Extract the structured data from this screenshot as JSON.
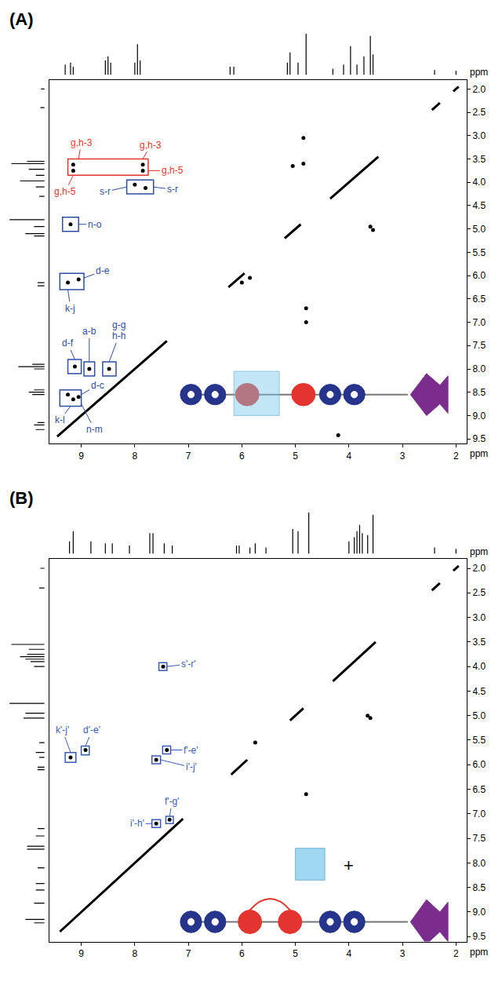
{
  "chart_data": [
    {
      "type": "scatter",
      "title": "(A)",
      "x_label": "ppm",
      "y_label": "ppm",
      "xlim": [
        9.6,
        1.8
      ],
      "ylim": [
        9.6,
        1.8
      ],
      "xticks": [
        9,
        8,
        7,
        6,
        5,
        4,
        3,
        2
      ],
      "yticks": [
        {
          "value": 2,
          "label": "2.0"
        },
        2.5,
        {
          "value": 3,
          "label": "3.0"
        },
        3.5,
        {
          "value": 4,
          "label": "4.0"
        },
        4.5,
        {
          "value": 5,
          "label": "5.0"
        },
        5.5,
        {
          "value": 6,
          "label": "6.0"
        },
        6.5,
        {
          "value": 7,
          "label": "7.0"
        },
        7.5,
        {
          "value": 8,
          "label": "8.0"
        },
        8.5,
        {
          "value": 9,
          "label": "9.0"
        },
        9.5
      ],
      "projection": {
        "color": "#000000",
        "x": [
          9.3,
          9.2,
          9.15,
          8.55,
          8.5,
          8.45,
          8.0,
          7.95,
          7.9,
          6.22,
          6.15,
          5.15,
          5.1,
          4.95,
          4.8,
          4.3,
          4.1,
          3.97,
          3.85,
          3.72,
          3.6,
          3.55,
          2.4,
          2.0
        ],
        "values": [
          0.25,
          0.3,
          0.2,
          0.35,
          0.45,
          0.3,
          0.3,
          0.75,
          0.35,
          0.2,
          0.2,
          0.3,
          0.55,
          0.3,
          1.0,
          0.15,
          0.25,
          0.7,
          0.25,
          0.45,
          0.95,
          0.5,
          0.12,
          0.1
        ]
      },
      "series": [
        {
          "type": "line",
          "line_style": "solid",
          "color": "#000000",
          "x": [
            9.45,
            7.4,
            null,
            6.25,
            5.95,
            null,
            5.2,
            4.9,
            null,
            4.35,
            3.45,
            null,
            2.45,
            2.3,
            null,
            2.05,
            1.95
          ],
          "y": [
            9.45,
            7.4,
            null,
            6.25,
            5.95,
            null,
            5.2,
            4.9,
            null,
            4.35,
            3.45,
            null,
            2.45,
            2.3,
            null,
            2.05,
            1.95
          ]
        },
        {
          "type": "scatter",
          "marker": "dot",
          "color": "#000000",
          "x": [
            9.15,
            7.85,
            9.15,
            7.85,
            8.0,
            7.8,
            9.2,
            9.25,
            9.05,
            9.12,
            8.85,
            8.48,
            9.25,
            9.15,
            9.05,
            4.85,
            4.85,
            5.05,
            3.6,
            3.55,
            4.8,
            4.8,
            4.2,
            6.0,
            5.85
          ],
          "y": [
            3.62,
            3.62,
            3.75,
            3.75,
            4.05,
            4.12,
            4.9,
            6.15,
            6.08,
            7.95,
            8.0,
            8.0,
            8.55,
            8.65,
            8.6,
            3.6,
            3.05,
            3.65,
            4.95,
            5.02,
            6.7,
            7.0,
            9.42,
            6.15,
            6.05
          ]
        }
      ],
      "boxes": [
        {
          "x": [
            9.25,
            7.75
          ],
          "y": [
            3.5,
            3.85
          ],
          "color": "#e3342f"
        },
        {
          "x": [
            8.15,
            7.65
          ],
          "y": [
            3.95,
            4.25
          ],
          "color": "#2f4da0"
        },
        {
          "x": [
            9.35,
            9.05
          ],
          "y": [
            4.75,
            5.05
          ],
          "color": "#2f4da0"
        },
        {
          "x": [
            9.4,
            8.95
          ],
          "y": [
            5.95,
            6.3
          ],
          "color": "#2f4da0"
        },
        {
          "x": [
            9.25,
            9.0
          ],
          "y": [
            7.8,
            8.1
          ],
          "color": "#2f4da0"
        },
        {
          "x": [
            8.95,
            8.75
          ],
          "y": [
            7.85,
            8.15
          ],
          "color": "#2f4da0"
        },
        {
          "x": [
            8.6,
            8.35
          ],
          "y": [
            7.85,
            8.15
          ],
          "color": "#2f4da0"
        },
        {
          "x": [
            9.4,
            9.0
          ],
          "y": [
            8.45,
            8.8
          ],
          "color": "#2f4da0"
        }
      ],
      "annotations": [
        {
          "text": "g,h-3",
          "x": 9.0,
          "y": 3.15,
          "point": [
            9.05,
            3.5
          ],
          "color": "#e3342f"
        },
        {
          "text": "g,h-3",
          "x": 7.7,
          "y": 3.2,
          "point": [
            7.85,
            3.5
          ],
          "color": "#e3342f"
        },
        {
          "text": "g,h-5",
          "x": 9.3,
          "y": 4.2,
          "point": [
            9.15,
            3.85
          ],
          "color": "#e3342f"
        },
        {
          "text": "g,h-5",
          "x": 7.3,
          "y": 3.75,
          "point": [
            7.75,
            3.75
          ],
          "color": "#e3342f"
        },
        {
          "text": "s-r",
          "x": 8.55,
          "y": 4.2,
          "point": [
            8.15,
            4.1
          ],
          "color": "#2f4da0"
        },
        {
          "text": "s-r",
          "x": 7.3,
          "y": 4.15,
          "point": [
            7.65,
            4.1
          ],
          "color": "#2f4da0"
        },
        {
          "text": "n-o",
          "x": 8.75,
          "y": 4.9,
          "point": [
            9.05,
            4.9
          ],
          "color": "#2f4da0"
        },
        {
          "text": "d-e",
          "x": 8.6,
          "y": 5.9,
          "point": [
            8.95,
            6.05
          ],
          "color": "#2f4da0"
        },
        {
          "text": "k-j",
          "x": 9.2,
          "y": 6.7,
          "point": [
            9.25,
            6.3
          ],
          "color": "#2f4da0"
        },
        {
          "text": "d-f",
          "x": 9.25,
          "y": 7.45,
          "point": [
            9.12,
            7.8
          ],
          "color": "#2f4da0"
        },
        {
          "text": "a-b",
          "x": 8.85,
          "y": 7.2,
          "point": [
            8.85,
            7.85
          ],
          "color": "#2f4da0"
        },
        {
          "text": "g-g",
          "x": 8.3,
          "y": 7.05,
          "color": "#2f4da0"
        },
        {
          "text": "h-h",
          "x": 8.3,
          "y": 7.3,
          "point": [
            8.48,
            7.85
          ],
          "color": "#2f4da0"
        },
        {
          "text": "d-c",
          "x": 8.7,
          "y": 8.35,
          "point": [
            9.0,
            8.55
          ],
          "color": "#2f4da0"
        },
        {
          "text": "k-l",
          "x": 9.4,
          "y": 9.1,
          "point": [
            9.2,
            8.8
          ],
          "color": "#2f4da0"
        },
        {
          "text": "n-m",
          "x": 8.75,
          "y": 9.3,
          "point": [
            9.0,
            8.75
          ],
          "color": "#2f4da0"
        }
      ]
    },
    {
      "type": "scatter",
      "title": "(B)",
      "x_label": "ppm",
      "y_label": "ppm",
      "xlim": [
        9.6,
        1.8
      ],
      "ylim": [
        9.6,
        1.8
      ],
      "xticks": [
        9,
        8,
        7,
        6,
        5,
        4,
        3,
        2
      ],
      "yticks": [
        {
          "value": 2,
          "label": "2.0"
        },
        2.5,
        {
          "value": 3,
          "label": "3.0"
        },
        3.5,
        {
          "value": 4,
          "label": "4.0"
        },
        4.5,
        {
          "value": 5,
          "label": "5.0"
        },
        5.5,
        {
          "value": 6,
          "label": "6.0"
        },
        6.5,
        {
          "value": 7,
          "label": "7.0"
        },
        7.5,
        {
          "value": 8,
          "label": "8.0"
        },
        8.5,
        {
          "value": 9,
          "label": "9.0"
        },
        9.5
      ],
      "projection": {
        "color": "#000000",
        "x": [
          9.22,
          9.15,
          8.82,
          8.55,
          8.42,
          8.1,
          7.72,
          7.66,
          7.45,
          7.3,
          6.1,
          6.05,
          5.85,
          5.75,
          5.55,
          5.05,
          4.95,
          4.75,
          4.0,
          3.9,
          3.85,
          3.8,
          3.75,
          3.65,
          3.55,
          2.4,
          2.0
        ],
        "values": [
          0.3,
          0.55,
          0.3,
          0.25,
          0.25,
          0.2,
          0.5,
          0.5,
          0.25,
          0.2,
          0.2,
          0.2,
          0.15,
          0.25,
          0.15,
          0.6,
          0.55,
          1.0,
          0.3,
          0.4,
          0.55,
          0.7,
          0.5,
          0.45,
          0.95,
          0.15,
          0.12
        ]
      },
      "series": [
        {
          "type": "line",
          "line_style": "solid",
          "color": "#000000",
          "x": [
            9.4,
            7.1,
            null,
            6.2,
            5.9,
            null,
            5.1,
            4.85,
            null,
            4.3,
            3.5,
            null,
            2.45,
            2.3,
            null,
            2.05,
            1.95
          ],
          "y": [
            9.4,
            7.1,
            null,
            6.2,
            5.9,
            null,
            5.1,
            4.85,
            null,
            4.3,
            3.5,
            null,
            2.45,
            2.3,
            null,
            2.05,
            1.95
          ]
        },
        {
          "type": "scatter",
          "marker": "dot",
          "color": "#000000",
          "x": [
            7.47,
            8.92,
            9.2,
            7.4,
            7.6,
            7.6,
            7.35,
            3.65,
            3.6,
            4.8,
            5.75
          ],
          "y": [
            4.0,
            5.7,
            5.85,
            5.7,
            5.9,
            7.2,
            7.12,
            5.0,
            5.05,
            6.6,
            5.55
          ]
        }
      ],
      "boxes": [
        {
          "x": [
            7.55,
            7.4
          ],
          "y": [
            3.92,
            4.08
          ],
          "color": "#3b5bb5"
        },
        {
          "x": [
            9.0,
            8.85
          ],
          "y": [
            5.62,
            5.8
          ],
          "color": "#3b5bb5"
        },
        {
          "x": [
            9.3,
            9.1
          ],
          "y": [
            5.75,
            5.95
          ],
          "color": "#3b5bb5"
        },
        {
          "x": [
            7.48,
            7.33
          ],
          "y": [
            5.62,
            5.78
          ],
          "color": "#3b5bb5"
        },
        {
          "x": [
            7.68,
            7.52
          ],
          "y": [
            5.82,
            5.98
          ],
          "color": "#3b5bb5"
        },
        {
          "x": [
            7.68,
            7.52
          ],
          "y": [
            7.12,
            7.28
          ],
          "color": "#3b5bb5"
        },
        {
          "x": [
            7.42,
            7.28
          ],
          "y": [
            7.05,
            7.2
          ],
          "color": "#3b5bb5"
        }
      ],
      "annotations": [
        {
          "text": "s'-r'",
          "x": 7.0,
          "y": 3.95,
          "point": [
            7.4,
            4.0
          ],
          "color": "#3b5bb5"
        },
        {
          "text": "d'-e'",
          "x": 8.8,
          "y": 5.3,
          "point": [
            8.92,
            5.62
          ],
          "color": "#3b5bb5"
        },
        {
          "text": "k'-j'",
          "x": 9.35,
          "y": 5.3,
          "point": [
            9.2,
            5.75
          ],
          "color": "#3b5bb5"
        },
        {
          "text": "f'-e'",
          "x": 6.95,
          "y": 5.7,
          "point": [
            7.33,
            5.7
          ],
          "color": "#3b5bb5"
        },
        {
          "text": "i'-j'",
          "x": 6.95,
          "y": 6.05,
          "point": [
            7.52,
            5.9
          ],
          "color": "#3b5bb5"
        },
        {
          "text": "i'-h'",
          "x": 7.95,
          "y": 7.2,
          "point": [
            7.68,
            7.2
          ],
          "color": "#3b5bb5"
        },
        {
          "text": "f'-g'",
          "x": 7.3,
          "y": 6.75,
          "point": [
            7.35,
            7.05
          ],
          "color": "#3b5bb5"
        },
        {
          "text": "+",
          "x": 4.0,
          "y": 8.05,
          "color": "#000000"
        }
      ]
    }
  ]
}
